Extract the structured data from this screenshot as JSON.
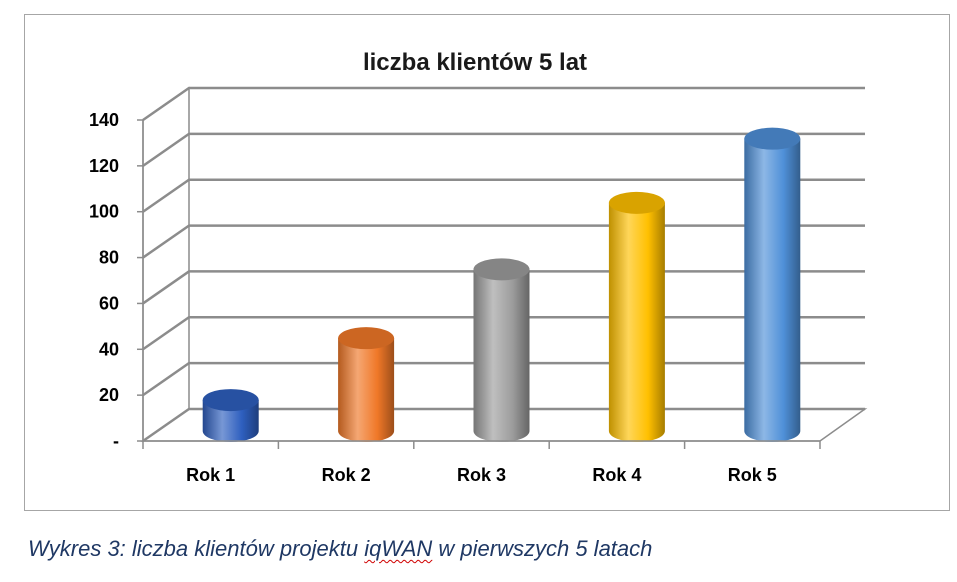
{
  "chart_data": {
    "type": "bar",
    "title": "liczba klientów 5 lat",
    "categories": [
      "Rok 1",
      "Rok 2",
      "Rok 3",
      "Rok 4",
      "Rok 5"
    ],
    "series": [
      {
        "values": [
          10,
          37,
          67,
          96,
          124
        ],
        "colors": [
          "#2e5fbf",
          "#f07828",
          "#9c9c9c",
          "#ffc000",
          "#4f90d8"
        ]
      }
    ],
    "yticks": [
      {
        "value": 0,
        "label": "-"
      },
      {
        "value": 20,
        "label": "20"
      },
      {
        "value": 40,
        "label": "40"
      },
      {
        "value": 60,
        "label": "60"
      },
      {
        "value": 80,
        "label": "80"
      },
      {
        "value": 100,
        "label": "100"
      },
      {
        "value": 120,
        "label": "120"
      },
      {
        "value": 140,
        "label": "140"
      }
    ],
    "ylim": [
      0,
      140
    ],
    "style": "3d-cylinder",
    "grid": true
  },
  "caption": {
    "prefix": "Wykres 3: liczba klientów projektu ",
    "flagged_word": "iqWAN",
    "suffix": " w pierwszych 5 latach"
  }
}
